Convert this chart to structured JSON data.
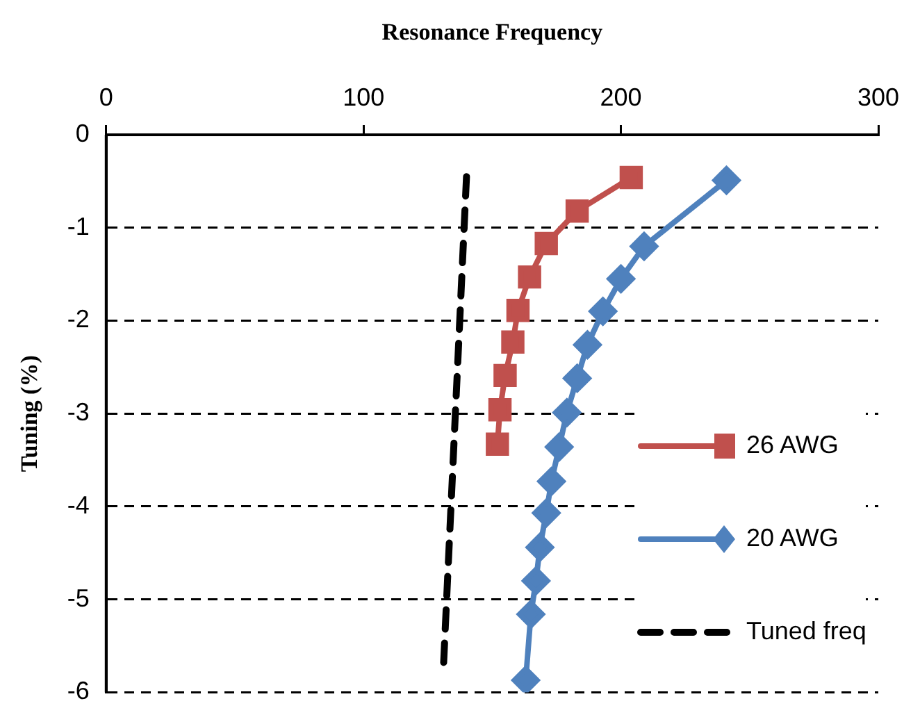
{
  "chart_data": {
    "type": "line",
    "xlabel": "Resonance Frequency",
    "ylabel": "Tuning (%)",
    "xlim": [
      0,
      300
    ],
    "xticks": [
      0,
      100,
      200,
      300
    ],
    "ylim": [
      -6,
      0
    ],
    "yticks": [
      0,
      -1,
      -2,
      -3,
      -4,
      -5,
      -6
    ],
    "grid": "y",
    "legend": "bottom right",
    "series": [
      {
        "name": "26 AWG",
        "color": "#c0504d",
        "marker": "square",
        "line_style": "solid",
        "x": [
          204,
          183,
          171,
          164.5,
          160,
          158,
          155,
          153,
          152
        ],
        "values": [
          -0.46,
          -0.82,
          -1.17,
          -1.53,
          -1.89,
          -2.23,
          -2.59,
          -2.96,
          -3.33
        ]
      },
      {
        "name": "20 AWG",
        "color": "#4f81bd",
        "marker": "diamond",
        "line_style": "solid",
        "x": [
          241,
          209,
          200,
          193,
          187,
          183,
          179,
          176,
          173,
          171,
          168.5,
          167,
          165,
          163
        ],
        "values": [
          -0.49,
          -1.2,
          -1.55,
          -1.9,
          -2.26,
          -2.62,
          -2.99,
          -3.36,
          -3.73,
          -4.07,
          -4.44,
          -4.8,
          -5.16,
          -5.87
        ]
      },
      {
        "name": "Tuned freq",
        "color": "#000000",
        "marker": "none",
        "line_style": "dashed",
        "x": [
          140,
          131
        ],
        "values": [
          -0.45,
          -5.75
        ]
      }
    ]
  }
}
